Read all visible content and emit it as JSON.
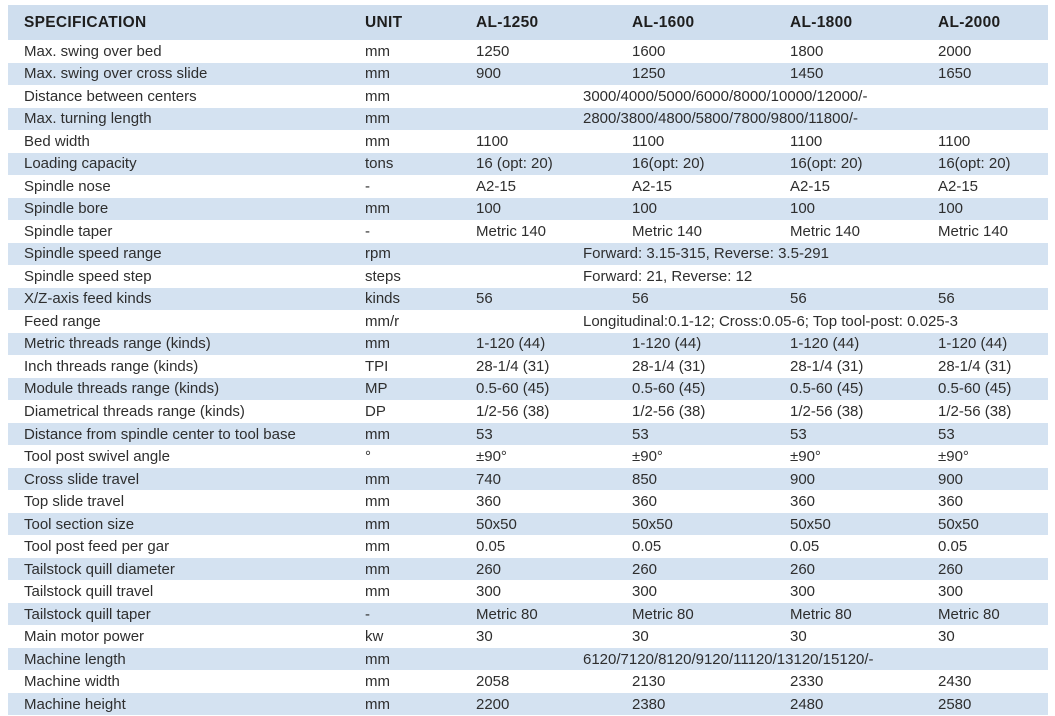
{
  "colors": {
    "header_band": "#cfdeee",
    "row_band": "#d4e2f1",
    "row_plain": "#ffffff",
    "text": "#2e2e2e"
  },
  "chart_data": {
    "type": "table",
    "title": "Machine specification table",
    "columns": [
      "SPECIFICATION",
      "UNIT",
      "AL-1250",
      "AL-1600",
      "AL-1800",
      "AL-2000"
    ],
    "rows": [
      {
        "spec": "Max. swing over bed",
        "unit": "mm",
        "values": [
          "1250",
          "1600",
          "1800",
          "2000"
        ]
      },
      {
        "spec": "Max. swing over cross slide",
        "unit": "mm",
        "values": [
          "900",
          "1250",
          "1450",
          "1650"
        ]
      },
      {
        "spec": "Distance between centers",
        "unit": "mm",
        "merged": "3000/4000/5000/6000/8000/10000/12000/-"
      },
      {
        "spec": "Max. turning length",
        "unit": "mm",
        "merged": "2800/3800/4800/5800/7800/9800/11800/-"
      },
      {
        "spec": "Bed width",
        "unit": "mm",
        "values": [
          "1100",
          "1100",
          "1100",
          "1100"
        ]
      },
      {
        "spec": "Loading capacity",
        "unit": "tons",
        "values": [
          "16 (opt: 20)",
          "16(opt: 20)",
          "16(opt: 20)",
          "16(opt: 20)"
        ]
      },
      {
        "spec": "Spindle nose",
        "unit": "-",
        "values": [
          "A2-15",
          "A2-15",
          "A2-15",
          "A2-15"
        ]
      },
      {
        "spec": "Spindle bore",
        "unit": "mm",
        "values": [
          "100",
          "100",
          "100",
          "100"
        ]
      },
      {
        "spec": "Spindle taper",
        "unit": "-",
        "values": [
          "Metric 140",
          "Metric 140",
          "Metric 140",
          "Metric 140"
        ]
      },
      {
        "spec": "Spindle speed range",
        "unit": "rpm",
        "merged": "Forward: 3.15-315, Reverse: 3.5-291"
      },
      {
        "spec": "Spindle speed step",
        "unit": "steps",
        "merged": "Forward: 21, Reverse: 12"
      },
      {
        "spec": "X/Z-axis feed kinds",
        "unit": "kinds",
        "values": [
          "56",
          "56",
          "56",
          "56"
        ]
      },
      {
        "spec": "Feed range",
        "unit": "mm/r",
        "merged": "Longitudinal:0.1-12; Cross:0.05-6; Top tool-post: 0.025-3"
      },
      {
        "spec": "Metric threads range (kinds)",
        "unit": "mm",
        "values": [
          "1-120 (44)",
          "1-120 (44)",
          "1-120 (44)",
          "1-120 (44)"
        ]
      },
      {
        "spec": "Inch threads range (kinds)",
        "unit": "TPI",
        "values": [
          "28-1/4 (31)",
          "28-1/4 (31)",
          "28-1/4 (31)",
          "28-1/4 (31)"
        ]
      },
      {
        "spec": "Module threads range (kinds)",
        "unit": "MP",
        "values": [
          "0.5-60 (45)",
          "0.5-60 (45)",
          "0.5-60 (45)",
          "0.5-60 (45)"
        ]
      },
      {
        "spec": "Diametrical threads range (kinds)",
        "unit": "DP",
        "values": [
          "1/2-56 (38)",
          "1/2-56 (38)",
          "1/2-56 (38)",
          "1/2-56 (38)"
        ]
      },
      {
        "spec": "Distance from spindle center to tool base",
        "unit": "mm",
        "values": [
          "53",
          "53",
          "53",
          "53"
        ]
      },
      {
        "spec": "Tool post swivel angle",
        "unit": "°",
        "values": [
          "±90°",
          "±90°",
          "±90°",
          "±90°"
        ]
      },
      {
        "spec": "Cross slide travel",
        "unit": "mm",
        "values": [
          "740",
          "850",
          "900",
          "900"
        ]
      },
      {
        "spec": "Top slide travel",
        "unit": "mm",
        "values": [
          "360",
          "360",
          "360",
          "360"
        ]
      },
      {
        "spec": "Tool section size",
        "unit": "mm",
        "values": [
          "50x50",
          "50x50",
          "50x50",
          "50x50"
        ]
      },
      {
        "spec": "Tool post feed per gar",
        "unit": "mm",
        "values": [
          "0.05",
          "0.05",
          "0.05",
          "0.05"
        ]
      },
      {
        "spec": "Tailstock quill diameter",
        "unit": "mm",
        "values": [
          "260",
          "260",
          "260",
          "260"
        ]
      },
      {
        "spec": "Tailstock quill travel",
        "unit": "mm",
        "values": [
          "300",
          "300",
          "300",
          "300"
        ]
      },
      {
        "spec": "Tailstock quill taper",
        "unit": "-",
        "values": [
          "Metric 80",
          "Metric 80",
          "Metric 80",
          "Metric 80"
        ]
      },
      {
        "spec": "Main motor power",
        "unit": "kw",
        "values": [
          "30",
          "30",
          "30",
          "30"
        ]
      },
      {
        "spec": "Machine length",
        "unit": "mm",
        "merged": "6120/7120/8120/9120/11120/13120/15120/-"
      },
      {
        "spec": "Machine width",
        "unit": "mm",
        "values": [
          "2058",
          "2130",
          "2330",
          "2430"
        ]
      },
      {
        "spec": "Machine height",
        "unit": "mm",
        "values": [
          "2200",
          "2380",
          "2480",
          "2580"
        ]
      }
    ]
  }
}
